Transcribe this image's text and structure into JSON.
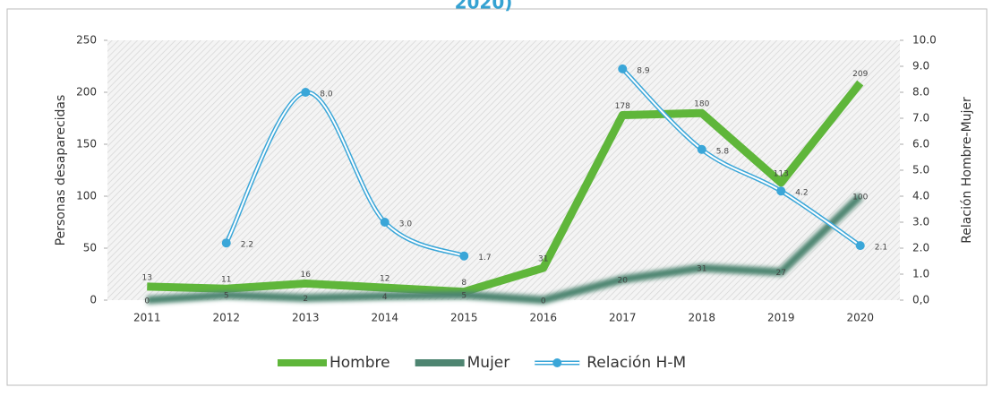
{
  "chart_data": {
    "type": "line",
    "title": "2020)",
    "categories": [
      "2011",
      "2012",
      "2013",
      "2014",
      "2015",
      "2016",
      "2017",
      "2018",
      "2019",
      "2020"
    ],
    "ylabel": "Personas desaparecidas",
    "y2label": "Relación Hombre-Mujer",
    "ylim": [
      0,
      250
    ],
    "yticks": [
      0,
      50,
      100,
      150,
      200,
      250
    ],
    "y2lim": [
      0,
      10
    ],
    "y2ticks": [
      {
        "value": 0,
        "label": "0,0"
      },
      {
        "value": 1,
        "label": "1.0"
      },
      {
        "value": 2,
        "label": "2.0"
      },
      {
        "value": 3,
        "label": "3.0"
      },
      {
        "value": 4,
        "label": "4.0"
      },
      {
        "value": 5,
        "label": "5.0"
      },
      {
        "value": 6,
        "label": "6.0"
      },
      {
        "value": 7,
        "label": "7.0"
      },
      {
        "value": 8,
        "label": "8.0"
      },
      {
        "value": 9,
        "label": "9.0"
      },
      {
        "value": 10,
        "label": "10.0"
      }
    ],
    "legend": "bottom",
    "series": [
      {
        "name": "Hombre",
        "color": "#5fb63a",
        "values": [
          13,
          11,
          16,
          12,
          8,
          31,
          178,
          180,
          113,
          209
        ]
      },
      {
        "name": "Mujer",
        "color": "#4e8571",
        "values": [
          0,
          5,
          2,
          4,
          5,
          0,
          20,
          31,
          27,
          100
        ]
      },
      {
        "name": "Relación H-M",
        "color": "#3aa6d8",
        "axis": "y2",
        "values": [
          null,
          2.2,
          8.0,
          3.0,
          1.7,
          null,
          8.9,
          5.8,
          4.2,
          2.1
        ],
        "value_labels": [
          null,
          "2.2",
          "8.0",
          "3.0",
          "1.7",
          null,
          "8.9",
          "5.8",
          "4.2",
          "2.1"
        ]
      }
    ]
  }
}
